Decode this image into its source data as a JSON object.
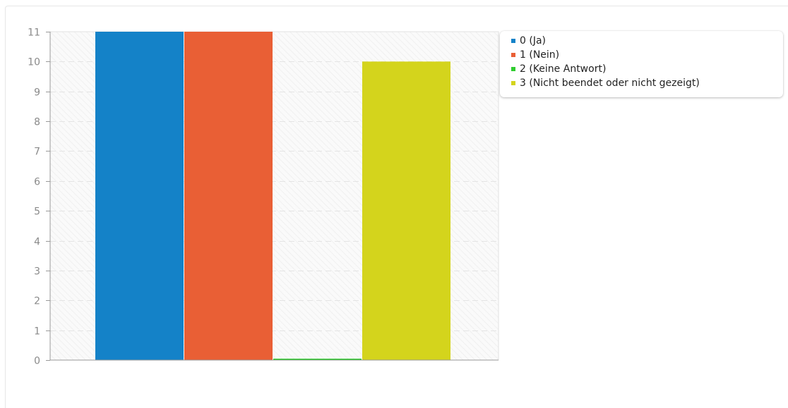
{
  "chart_data": {
    "type": "bar",
    "categories": [
      "0 (Ja)",
      "1 (Nein)",
      "2 (Keine Antwort)",
      "3 (Nicht beendet oder nicht gezeigt)"
    ],
    "values": [
      11,
      11,
      0,
      10
    ],
    "colors": [
      "#1482c8",
      "#e95f35",
      "#2fcc2f",
      "#d4d41c"
    ],
    "ylim": [
      0,
      11
    ],
    "yticks": [
      "0",
      "1",
      "2",
      "3",
      "4",
      "5",
      "6",
      "7",
      "8",
      "9",
      "10",
      "11"
    ],
    "title": "",
    "xlabel": "",
    "ylabel": "",
    "grid": true,
    "legend_position": "top-right"
  },
  "legend": {
    "items": [
      {
        "label": "0 (Ja)",
        "color": "#1482c8"
      },
      {
        "label": "1 (Nein)",
        "color": "#e95f35"
      },
      {
        "label": "2 (Keine Antwort)",
        "color": "#2fcc2f"
      },
      {
        "label": "3 (Nicht beendet oder nicht gezeigt)",
        "color": "#d4d41c"
      }
    ]
  }
}
